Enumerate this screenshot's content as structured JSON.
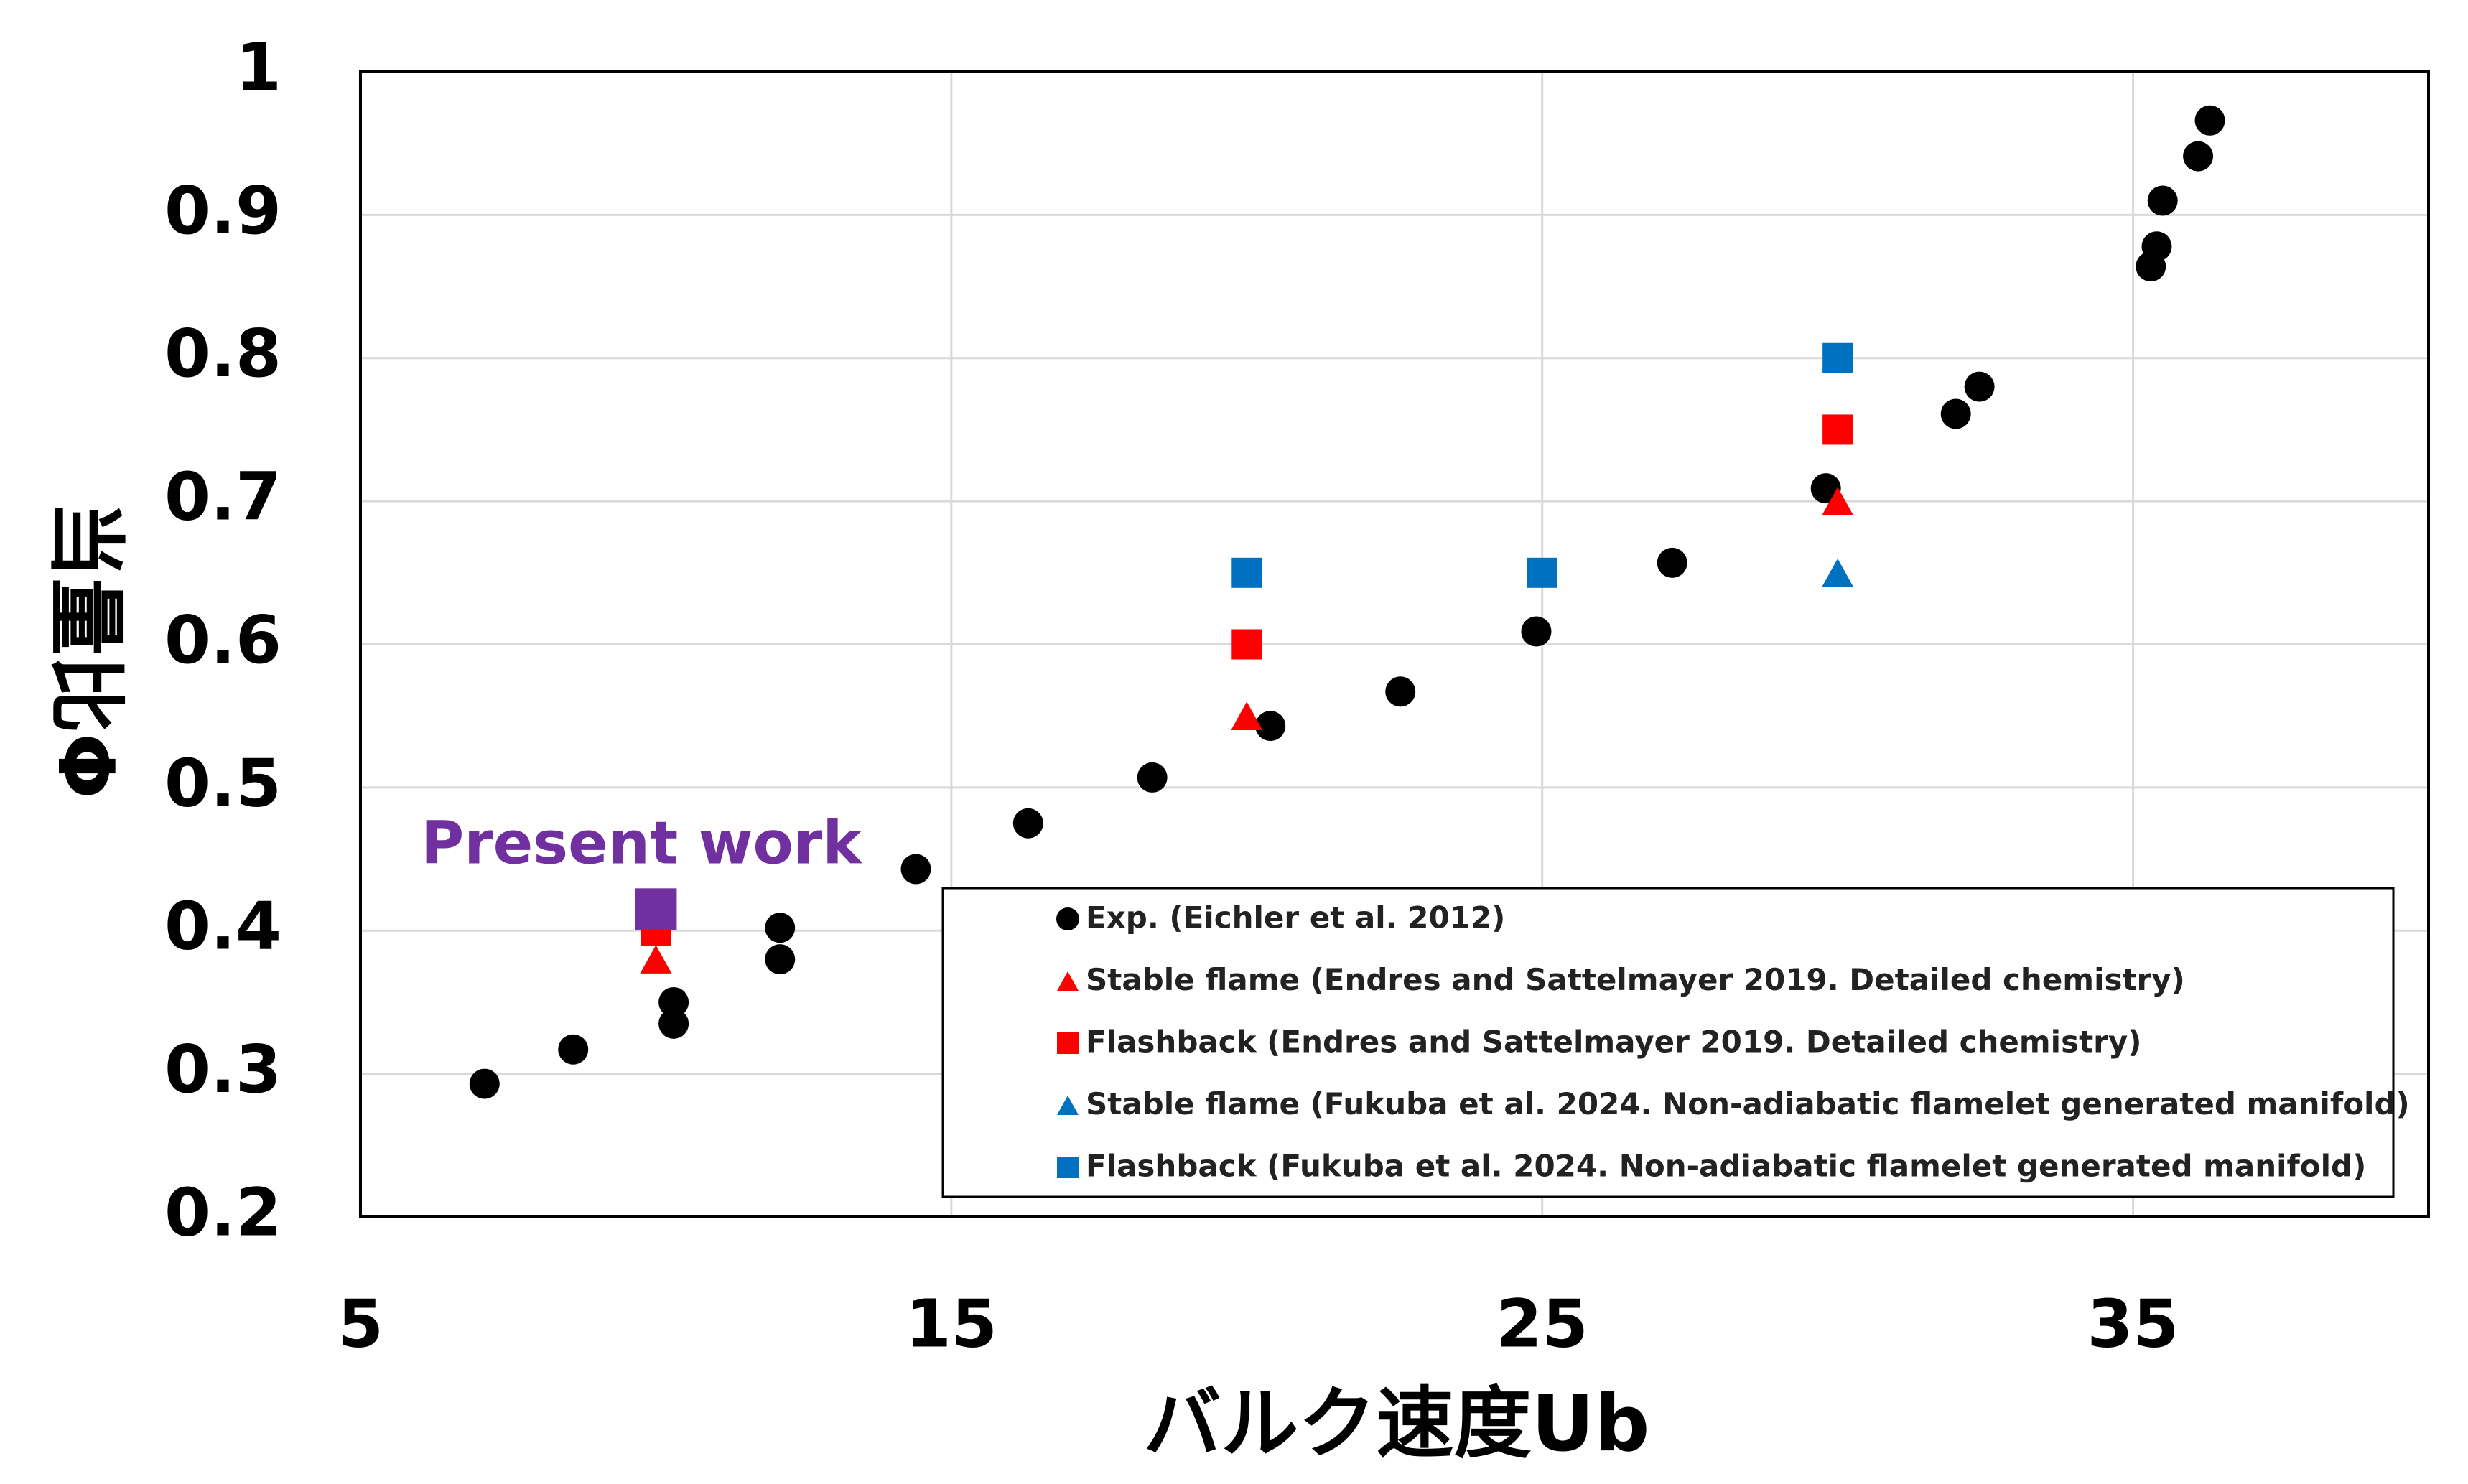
{
  "chart_data": {
    "type": "scatter",
    "xlabel": "バルク速度Ub",
    "ylabel": "当量比Φ",
    "xlim": [
      5,
      40
    ],
    "ylim": [
      0.2,
      1.0
    ],
    "x_ticks": [
      "5",
      "15",
      "25",
      "35"
    ],
    "x_tick_values": [
      5,
      15,
      25,
      35
    ],
    "y_ticks": [
      "0.2",
      "0.3",
      "0.4",
      "0.5",
      "0.6",
      "0.7",
      "0.8",
      "0.9",
      "1"
    ],
    "y_tick_values": [
      0.2,
      0.3,
      0.4,
      0.5,
      0.6,
      0.7,
      0.8,
      0.9,
      1.0
    ],
    "grid": true,
    "legend_position": "bottom-right",
    "annotation": {
      "text": "Present work",
      "x": 10,
      "y": 0.415,
      "color": "#7030A0"
    },
    "series": [
      {
        "name": "Exp. (Eichler et al. 2012)",
        "marker": "circle",
        "color": "#000000",
        "points": [
          [
            7.1,
            0.293
          ],
          [
            8.6,
            0.317
          ],
          [
            10.3,
            0.35
          ],
          [
            10.3,
            0.335
          ],
          [
            12.1,
            0.38
          ],
          [
            12.1,
            0.402
          ],
          [
            14.4,
            0.443
          ],
          [
            16.3,
            0.475
          ],
          [
            18.4,
            0.507
          ],
          [
            20.4,
            0.543
          ],
          [
            22.6,
            0.567
          ],
          [
            24.9,
            0.609
          ],
          [
            27.2,
            0.657
          ],
          [
            29.8,
            0.709
          ],
          [
            32.0,
            0.761
          ],
          [
            32.4,
            0.78
          ],
          [
            35.3,
            0.864
          ],
          [
            35.4,
            0.878
          ],
          [
            35.5,
            0.91
          ],
          [
            36.1,
            0.941
          ],
          [
            36.3,
            0.966
          ]
        ]
      },
      {
        "name": "Stable flame (Endres and Sattelmayer 2019. Detailed chemistry)",
        "marker": "triangle",
        "color": "#FF0000",
        "points": [
          [
            10,
            0.38
          ],
          [
            20,
            0.55
          ],
          [
            30,
            0.7
          ]
        ]
      },
      {
        "name": "Flashback (Endres and Sattelmayer 2019. Detailed chemistry)",
        "marker": "square",
        "color": "#FF0000",
        "points": [
          [
            10,
            0.4
          ],
          [
            20,
            0.6
          ],
          [
            30,
            0.75
          ]
        ]
      },
      {
        "name": "Stable flame (Fukuba et al. 2024. Non-adiabatic flamelet generated manifold)",
        "marker": "triangle",
        "color": "#0070C0",
        "points": [
          [
            30,
            0.65
          ]
        ]
      },
      {
        "name": "Flashback (Fukuba et al. 2024. Non-adiabatic flamelet generated manifold)",
        "marker": "square",
        "color": "#0070C0",
        "points": [
          [
            20,
            0.65
          ],
          [
            25,
            0.65
          ],
          [
            30,
            0.8
          ]
        ]
      },
      {
        "name": "",
        "marker": "square",
        "color": "#7030A0",
        "points": [
          [
            10,
            0.415
          ]
        ]
      }
    ]
  }
}
